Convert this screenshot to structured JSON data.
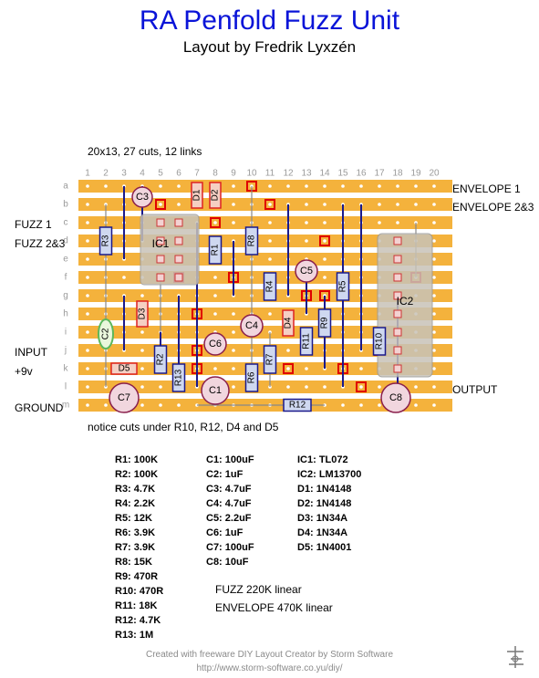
{
  "header": {
    "title": "RA Penfold Fuzz Unit",
    "subtitle": "Layout by Fredrik Lyxzén"
  },
  "board_info": "20x13, 27 cuts, 12 links",
  "notice": "notice cuts under R10, R12, D4 and D5",
  "board": {
    "columns": [
      "1",
      "2",
      "3",
      "4",
      "5",
      "6",
      "7",
      "8",
      "9",
      "10",
      "11",
      "12",
      "13",
      "14",
      "15",
      "16",
      "17",
      "18",
      "19",
      "20"
    ],
    "rows": [
      "a",
      "b",
      "c",
      "d",
      "e",
      "f",
      "g",
      "h",
      "i",
      "j",
      "k",
      "l",
      "m"
    ],
    "strip_color": "#f4b23c",
    "cut_color": "#e00000"
  },
  "labels": {
    "left": [
      "FUZZ 1",
      "FUZZ 2&3",
      "INPUT",
      "+9v",
      "GROUND"
    ],
    "right": [
      "ENVELOPE 1",
      "ENVELOPE 2&3",
      "OUTPUT"
    ]
  },
  "components": {
    "ic1": "IC1",
    "ic2": "IC2",
    "resistors": [
      "R1",
      "R2",
      "R3",
      "R4",
      "R5",
      "R6",
      "R7",
      "R8",
      "R9",
      "R10",
      "R11",
      "R12",
      "R13"
    ],
    "capacitors": [
      "C1",
      "C2",
      "C3",
      "C4",
      "C5",
      "C6",
      "C7",
      "C8"
    ],
    "diodes": [
      "D1",
      "D2",
      "D3",
      "D4",
      "D5"
    ]
  },
  "bom": {
    "col1": [
      "R1: 100K",
      "R2: 100K",
      "R3: 4.7K",
      "R4: 2.2K",
      "R5: 12K",
      "R6: 3.9K",
      "R7: 3.9K",
      "R8: 15K",
      "R9: 470R",
      "R10: 470R",
      "R11: 18K",
      "R12: 4.7K",
      "R13: 1M"
    ],
    "col2": [
      "C1: 100uF",
      "C2: 1uF",
      "C3: 4.7uF",
      "C4: 4.7uF",
      "C5: 2.2uF",
      "C6: 1uF",
      "C7: 100uF",
      "C8: 10uF"
    ],
    "col3": [
      "IC1: TL072",
      "IC2: LM13700",
      "D1: 1N4148",
      "D2: 1N4148",
      "D3: 1N34A",
      "D4: 1N34A",
      "D5: 1N4001"
    ],
    "pots": [
      "FUZZ 220K linear",
      "ENVELOPE 470K linear"
    ]
  },
  "footer": {
    "credit": "Created with freeware DIY Layout Creator by Storm Software",
    "url": "http://www.storm-software.co.yu/diy/"
  },
  "logo_icon": "circuit-logo-icon"
}
